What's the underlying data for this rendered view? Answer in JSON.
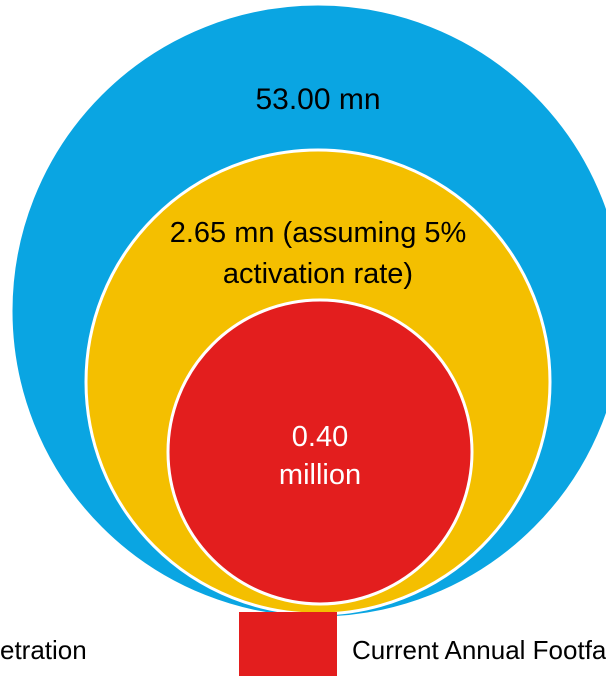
{
  "diagram": {
    "outer": {
      "label": "53.00 mn",
      "color": "#0AA5E2"
    },
    "middle": {
      "label_line1": "2.65 mn (assuming 5%",
      "label_line2": "activation rate)",
      "color": "#F4BF00"
    },
    "inner": {
      "label_line1": "0.40",
      "label_line2": "million",
      "color": "#E31E1E"
    }
  },
  "legend": {
    "items": [
      {
        "label": "etration"
      },
      {
        "label": "Current Annual Footfal",
        "color": "#E31E1E"
      }
    ]
  }
}
